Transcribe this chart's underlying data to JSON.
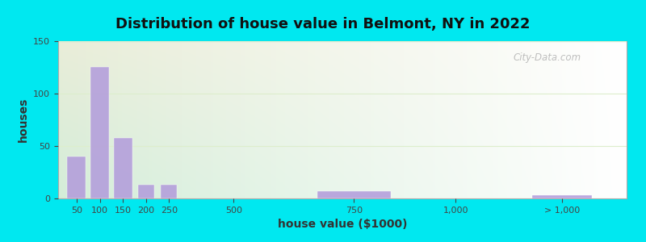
{
  "title": "Distribution of house value in Belmont, NY in 2022",
  "xlabel": "house value ($1000)",
  "ylabel": "houses",
  "bar_color": "#b39ddb",
  "bar_edgecolor": "#b39ddb",
  "background_outer": "#00e8f0",
  "ylim": [
    0,
    150
  ],
  "yticks": [
    0,
    50,
    100,
    150
  ],
  "bar_positions": [
    50,
    100,
    150,
    200,
    250,
    650,
    1100
  ],
  "bar_heights": [
    40,
    125,
    58,
    13,
    13,
    7,
    3
  ],
  "bar_widths": [
    40,
    40,
    40,
    35,
    35,
    160,
    130
  ],
  "xtick_labels": [
    "50",
    "100",
    "150",
    "200",
    "250",
    "500",
    "750",
    "1,000",
    "> 1,000"
  ],
  "xtick_positions": [
    50,
    100,
    150,
    200,
    250,
    390,
    650,
    870,
    1100
  ],
  "xlim": [
    10,
    1240
  ],
  "title_fontsize": 13,
  "axis_label_fontsize": 10,
  "tick_fontsize": 8,
  "watermark_text": "City-Data.com",
  "grad_color_topleft": "#d4edda",
  "grad_color_bottomright": "#ffffff",
  "grid_color": "#ddeecc",
  "spine_color": "#aaaaaa"
}
